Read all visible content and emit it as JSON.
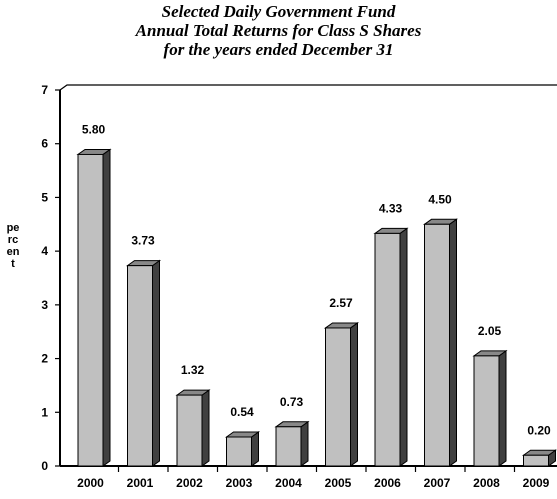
{
  "chart_data": {
    "type": "bar",
    "title_lines": [
      "Selected Daily Government Fund",
      "Annual Total Returns for Class S Shares",
      "for the years ended December 31"
    ],
    "xlabel": "",
    "ylabel": "percent",
    "categories": [
      "2000",
      "2001",
      "2002",
      "2003",
      "2004",
      "2005",
      "2006",
      "2007",
      "2008",
      "2009"
    ],
    "values": [
      5.8,
      3.73,
      1.32,
      0.54,
      0.73,
      2.57,
      4.33,
      4.5,
      2.05,
      0.2
    ],
    "value_labels": [
      "5.80",
      "3.73",
      "1.32",
      "0.54",
      "0.73",
      "2.57",
      "4.33",
      "4.50",
      "2.05",
      "0.20"
    ],
    "yticks": [
      "0",
      "1",
      "2",
      "3",
      "4",
      "5",
      "6",
      "7"
    ],
    "ylim": [
      0,
      7
    ],
    "grid": false,
    "legend": "none",
    "bar_style": "3d",
    "colors": {
      "bar_front": "#c0c0c0",
      "bar_top": "#888888",
      "bar_side": "#404040",
      "axis": "#000000"
    }
  }
}
